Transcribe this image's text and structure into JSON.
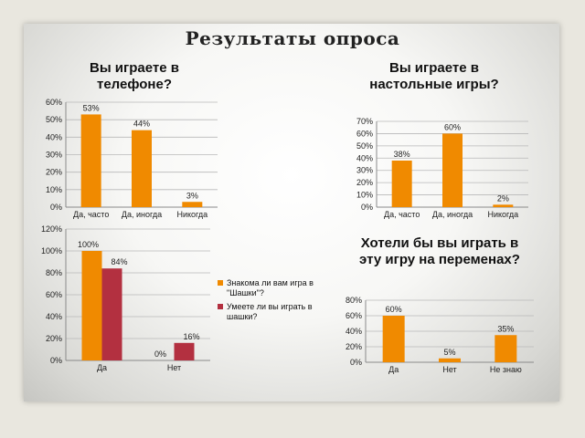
{
  "page": {
    "title": "Результаты опроса"
  },
  "colors": {
    "orange": "#f08a00",
    "maroon": "#b33040",
    "grid": "#b8b8b8",
    "axis": "#8a8a8a",
    "text": "#222222"
  },
  "chart_data": [
    {
      "type": "bar",
      "title": "Вы играете в телефоне?",
      "categories": [
        "Да, часто",
        "Да, иногда",
        "Никогда"
      ],
      "values": [
        53,
        44,
        3
      ],
      "data_labels": [
        "53%",
        "44%",
        "3%"
      ],
      "yticks": [
        "0%",
        "10%",
        "20%",
        "30%",
        "40%",
        "50%",
        "60%"
      ],
      "ylim": [
        0,
        60
      ],
      "grid": true
    },
    {
      "type": "bar",
      "title": "Вы играете в настольные игры?",
      "categories": [
        "Да, часто",
        "Да, иногда",
        "Никогда"
      ],
      "values": [
        38,
        60,
        2
      ],
      "data_labels": [
        "38%",
        "60%",
        "2%"
      ],
      "yticks": [
        "0%",
        "10%",
        "20%",
        "30%",
        "40%",
        "50%",
        "60%",
        "70%"
      ],
      "ylim": [
        0,
        70
      ],
      "grid": true
    },
    {
      "type": "bar",
      "title": "",
      "categories": [
        "Да",
        "Нет"
      ],
      "series": [
        {
          "name": "Знакома ли вам игра в \"Шашки\"?",
          "values": [
            100,
            0
          ],
          "data_labels": [
            "100%",
            "0%"
          ]
        },
        {
          "name": "Умеете ли вы играть в шашки?",
          "values": [
            84,
            16
          ],
          "data_labels": [
            "84%",
            "16%"
          ]
        }
      ],
      "yticks": [
        "0%",
        "20%",
        "40%",
        "60%",
        "80%",
        "100%",
        "120%"
      ],
      "ylim": [
        0,
        120
      ],
      "grid": true,
      "legend": "right"
    },
    {
      "type": "bar",
      "title": "Хотели бы вы играть в эту игру на переменах?",
      "categories": [
        "Да",
        "Нет",
        "Не знаю"
      ],
      "values": [
        60,
        5,
        35
      ],
      "data_labels": [
        "60%",
        "5%",
        "35%"
      ],
      "yticks": [
        "0%",
        "20%",
        "40%",
        "60%",
        "80%"
      ],
      "ylim": [
        0,
        80
      ],
      "grid": true
    }
  ]
}
